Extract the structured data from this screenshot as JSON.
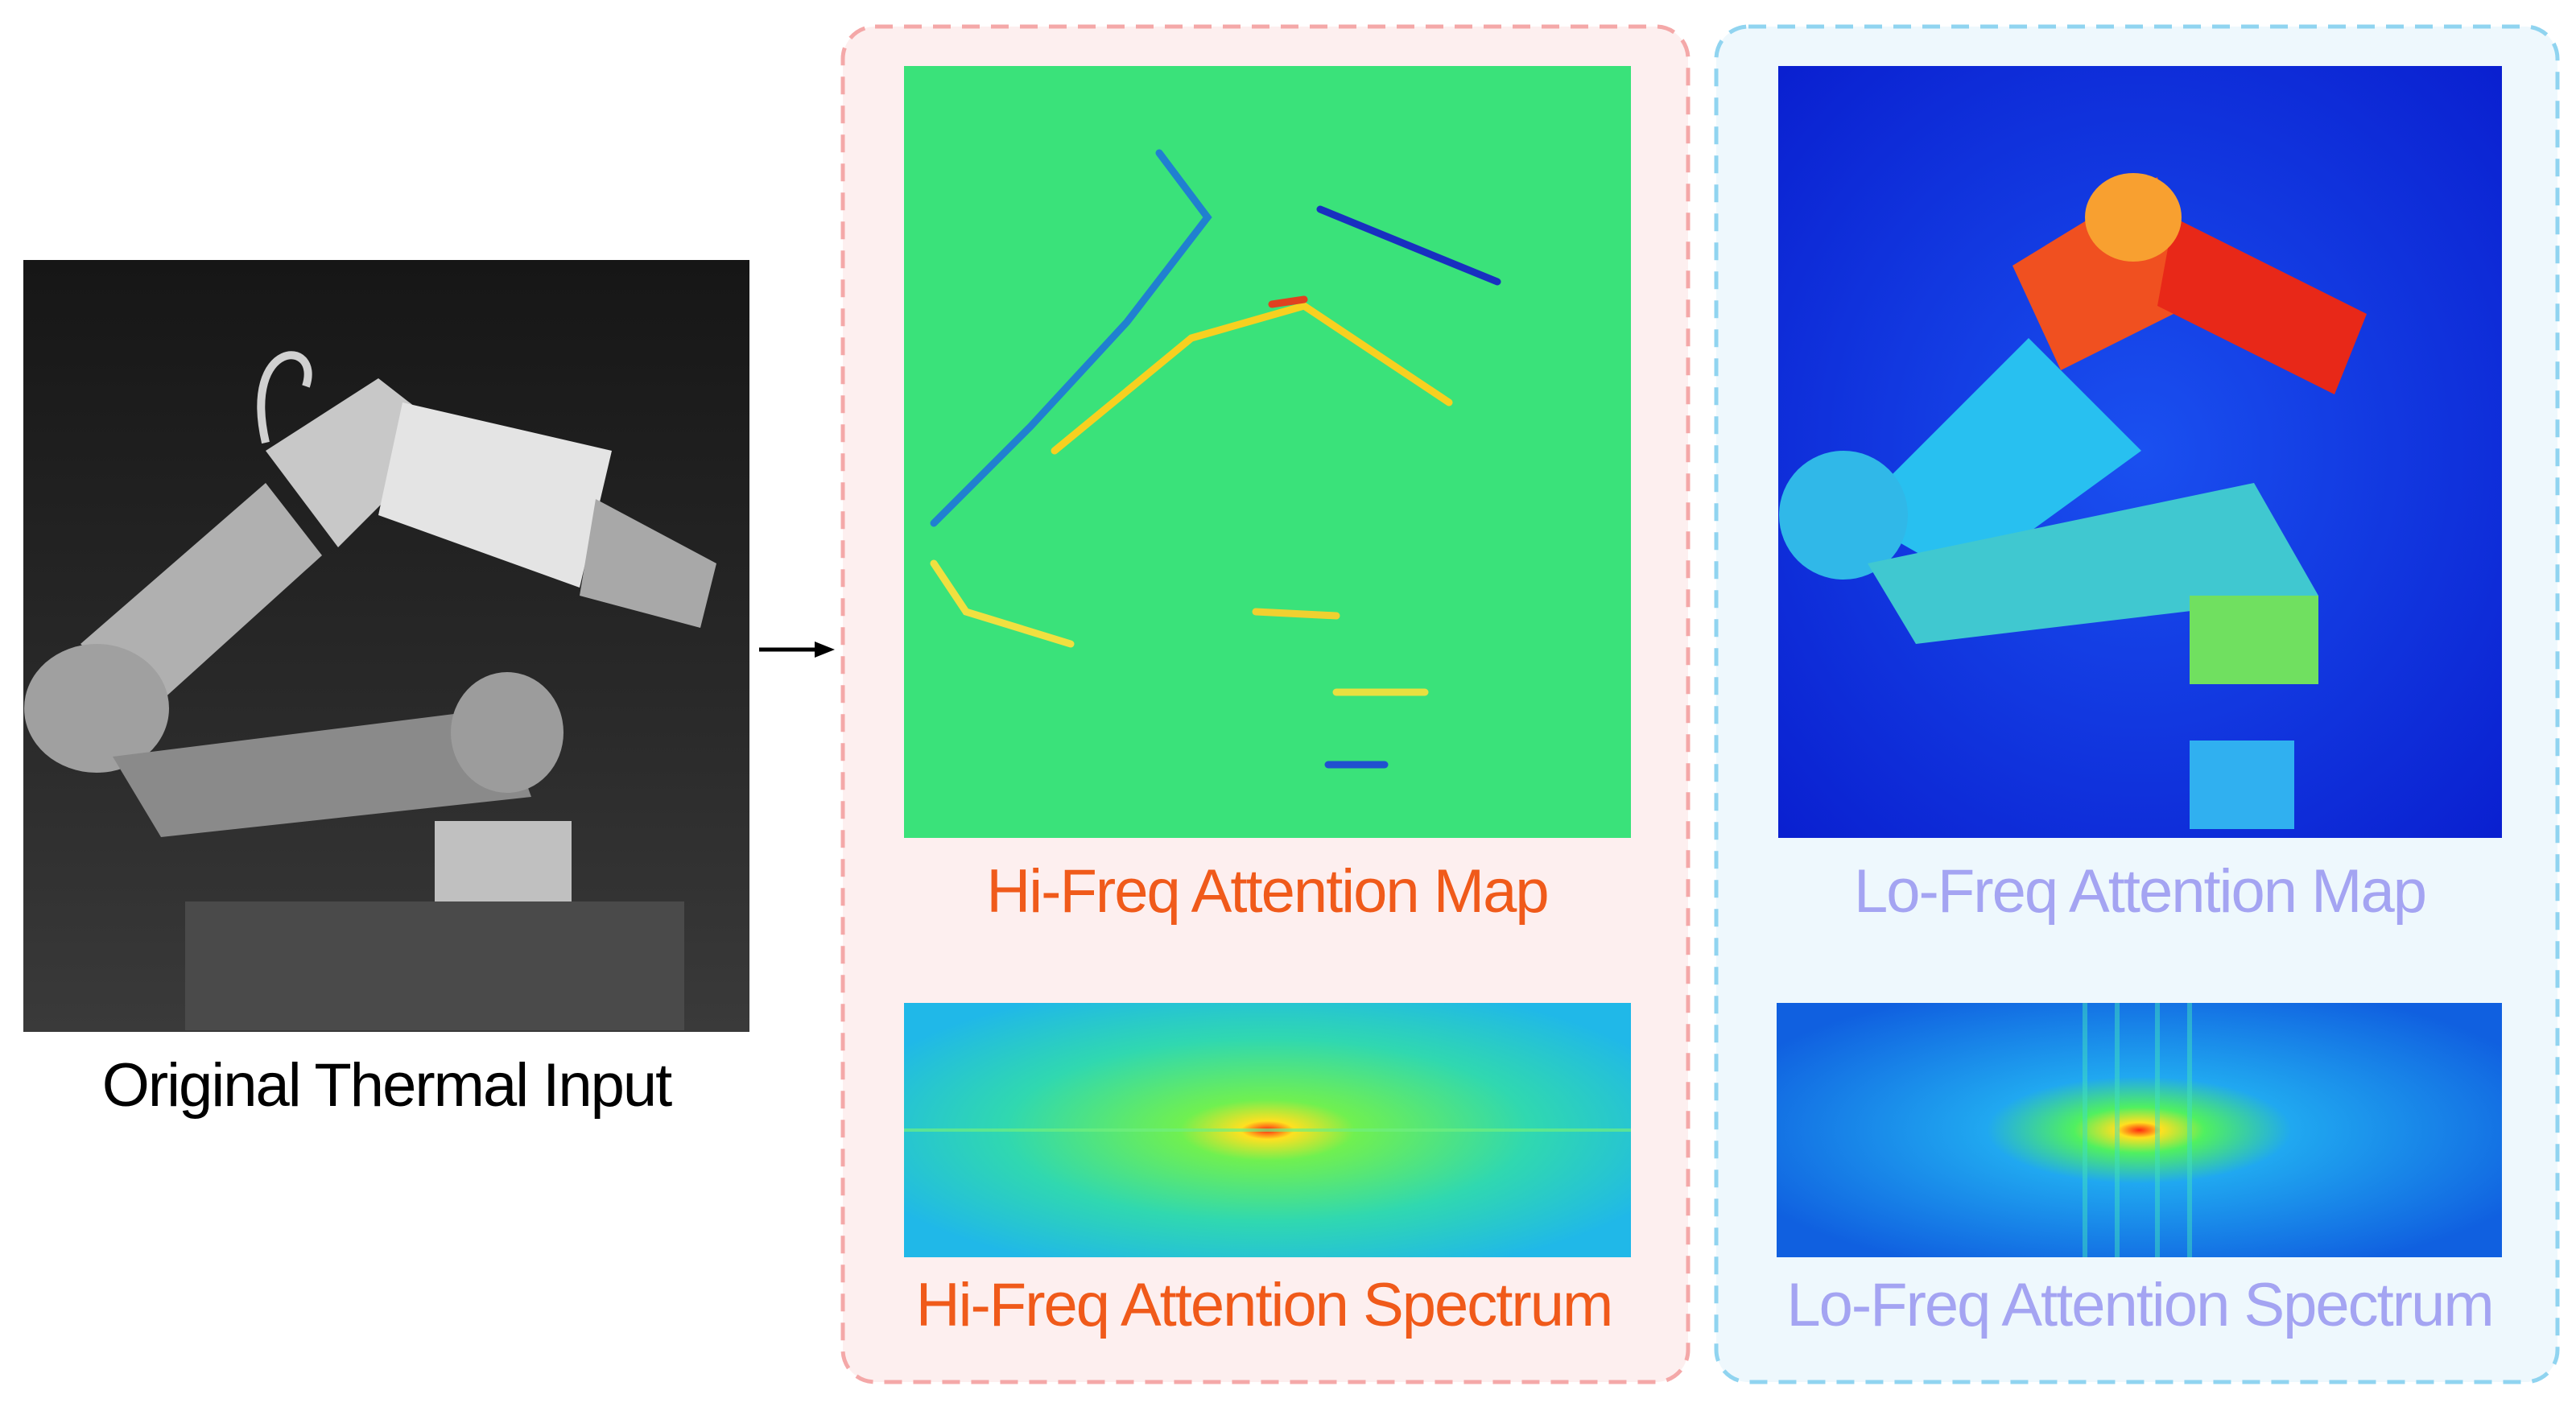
{
  "input_caption": "Original Thermal Input",
  "hi_freq": {
    "map_label": "Hi-Freq Attention Map",
    "spectrum_label": "Hi-Freq Attention Spectrum"
  },
  "lo_freq": {
    "map_label": "Lo-Freq Attention Map",
    "spectrum_label": "Lo-Freq Attention Spectrum"
  }
}
